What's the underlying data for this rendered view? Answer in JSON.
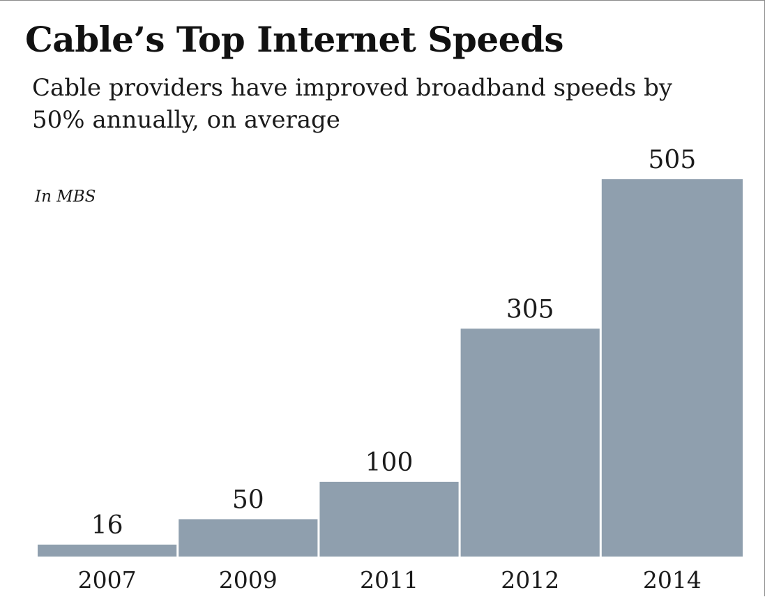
{
  "chart_data": {
    "type": "bar",
    "title": "Cable’s Top Internet Speeds",
    "subtitle": "Cable providers have improved broadband speeds by 50% annually, on average",
    "unit_label": "In MBS",
    "categories": [
      "2007",
      "2009",
      "2011",
      "2012",
      "2014"
    ],
    "values": [
      16,
      50,
      100,
      305,
      505
    ],
    "ylim": [
      0,
      505
    ],
    "grid": false,
    "legend": "none",
    "bar_color": "#8f9fae",
    "text_color": "#1a1a1a"
  }
}
